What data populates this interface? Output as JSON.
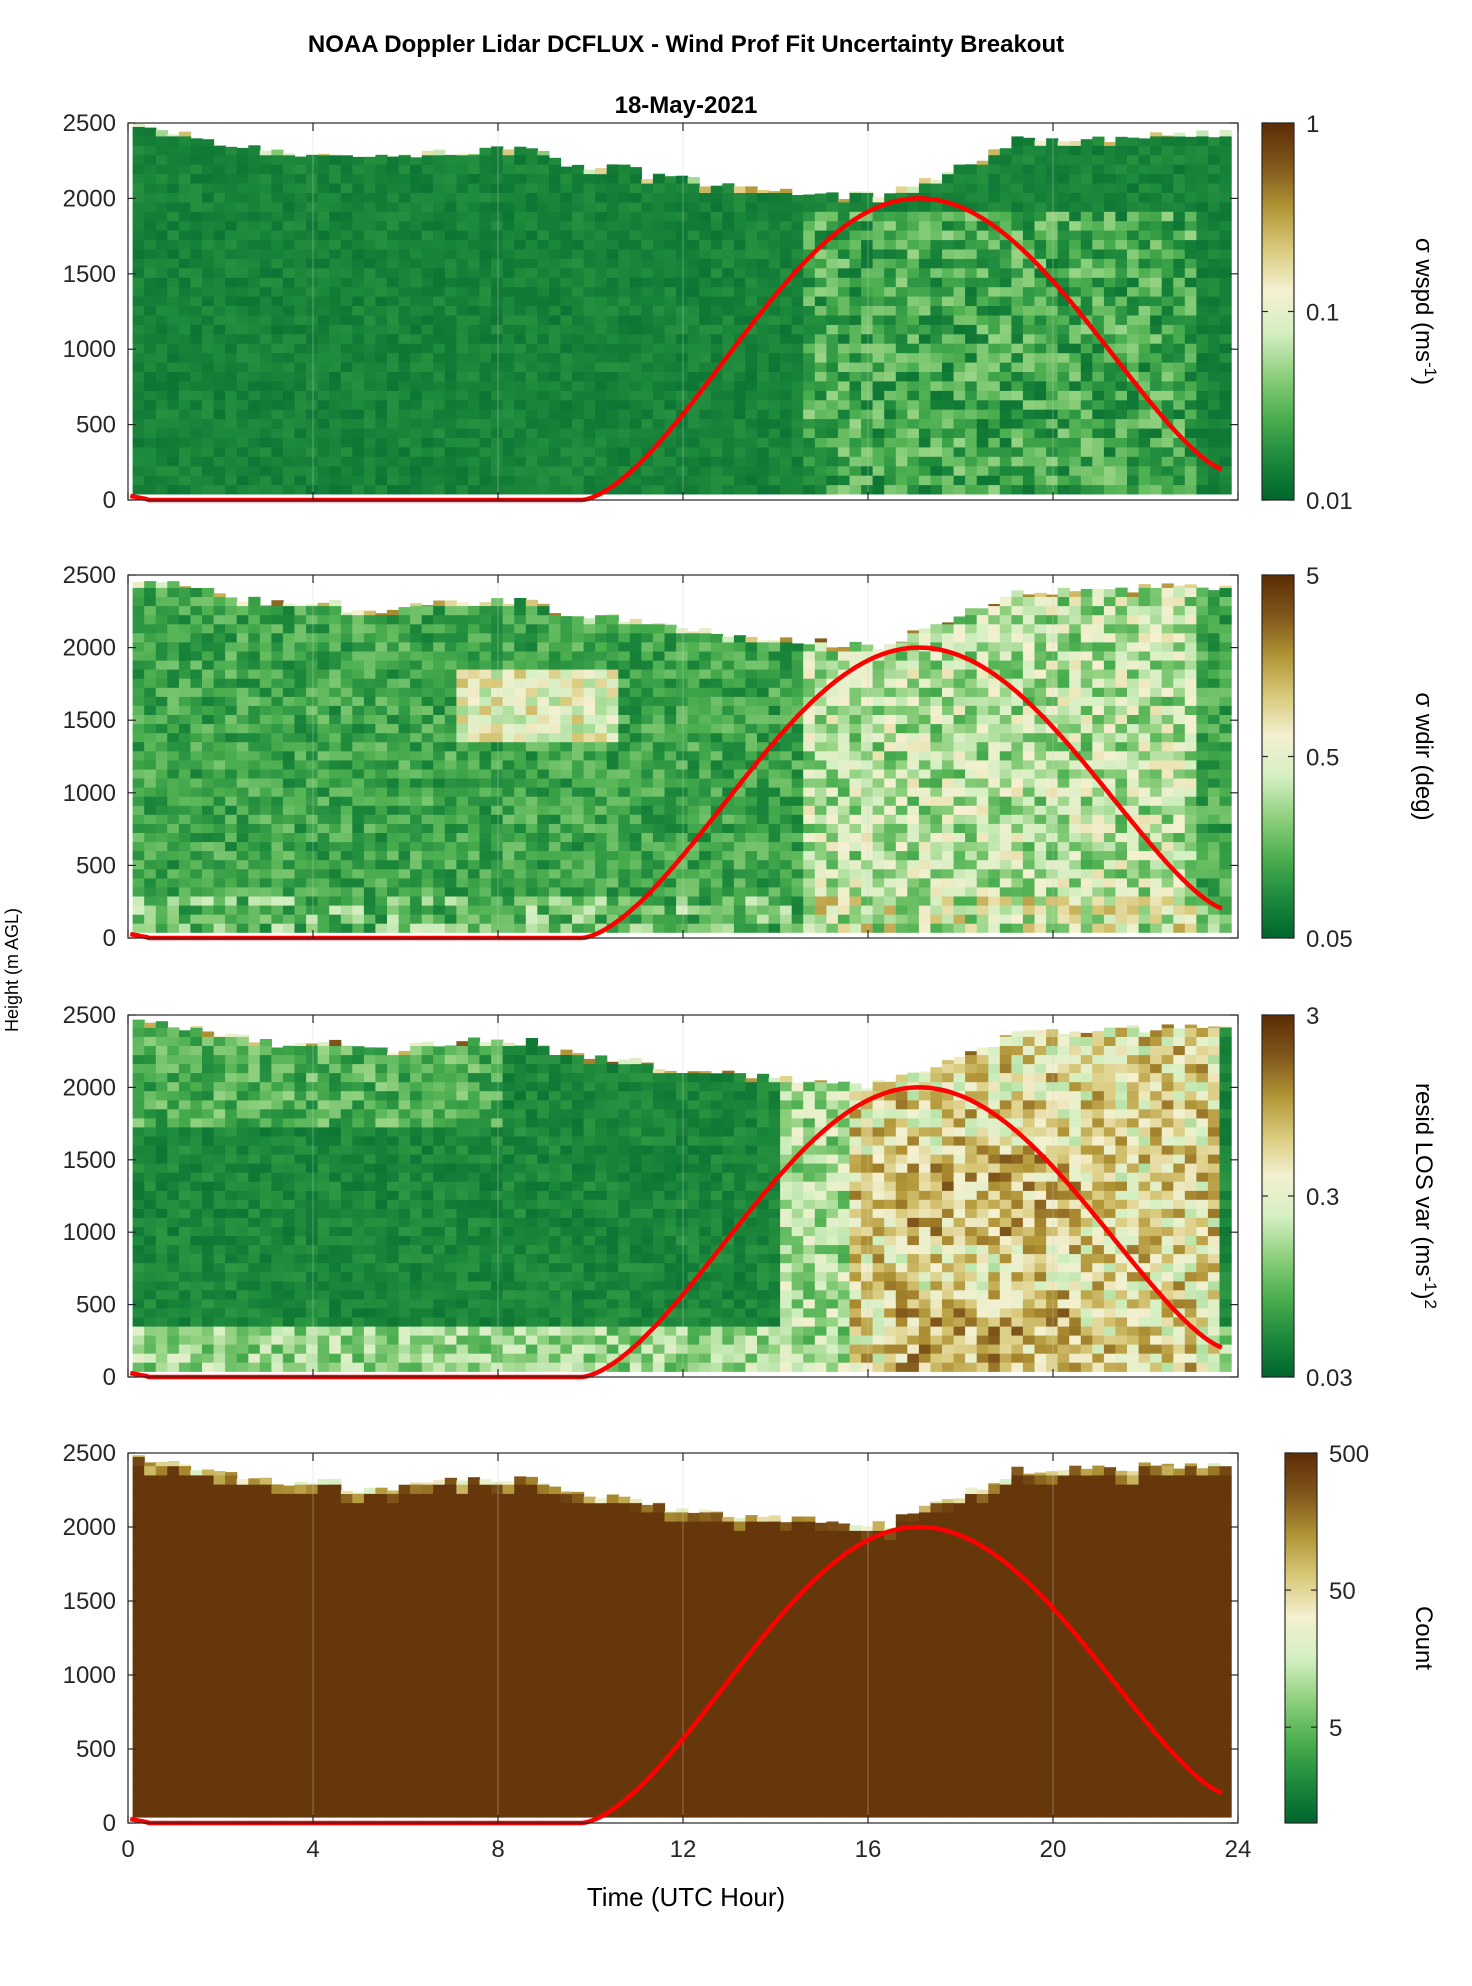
{
  "figure": {
    "title": "NOAA Doppler Lidar DCFLUX - Wind Prof Fit Uncertainty Breakout",
    "date": "18-May-2021",
    "ylabel": "Height (m AGL)",
    "xlabel": "Time (UTC Hour)"
  },
  "chart_data": [
    {
      "type": "heatmap",
      "panel": "sigma-wspd",
      "colorbar_label_parts": [
        "σ wspd (ms",
        "-1",
        ")"
      ],
      "colorbar_scale": "log",
      "colorbar_range": [
        0.01,
        1
      ],
      "colorbar_ticks": [
        "0.01",
        "0.1",
        "1"
      ],
      "xlim": [
        0,
        24
      ],
      "ylim": [
        0,
        2500
      ],
      "xticks": [
        "0",
        "4",
        "8",
        "12",
        "16",
        "20",
        "24"
      ],
      "yticks": [
        "0",
        "500",
        "1000",
        "1500",
        "2000",
        "2500"
      ],
      "overlay_line": {
        "color": "#ff0000"
      }
    },
    {
      "type": "heatmap",
      "panel": "sigma-wdir",
      "colorbar_label_parts": [
        "σ wdir (deg)"
      ],
      "colorbar_scale": "log",
      "colorbar_range": [
        0.05,
        5
      ],
      "colorbar_ticks": [
        "0.05",
        "0.5",
        "5"
      ],
      "xlim": [
        0,
        24
      ],
      "ylim": [
        0,
        2500
      ],
      "xticks": [
        "0",
        "4",
        "8",
        "12",
        "16",
        "20",
        "24"
      ],
      "yticks": [
        "0",
        "500",
        "1000",
        "1500",
        "2000",
        "2500"
      ],
      "overlay_line": {
        "color": "#ff0000"
      }
    },
    {
      "type": "heatmap",
      "panel": "resid-los-var",
      "colorbar_label_parts": [
        "resid LOS var (ms",
        "-1",
        ")",
        "2"
      ],
      "colorbar_scale": "log",
      "colorbar_range": [
        0.03,
        3
      ],
      "colorbar_ticks": [
        "0.03",
        "0.3",
        "3"
      ],
      "xlim": [
        0,
        24
      ],
      "ylim": [
        0,
        2500
      ],
      "xticks": [
        "0",
        "4",
        "8",
        "12",
        "16",
        "20",
        "24"
      ],
      "yticks": [
        "0",
        "500",
        "1000",
        "1500",
        "2000",
        "2500"
      ],
      "overlay_line": {
        "color": "#ff0000"
      }
    },
    {
      "type": "heatmap",
      "panel": "count",
      "colorbar_label_parts": [
        "Count"
      ],
      "colorbar_scale": "log",
      "colorbar_range": [
        1,
        500
      ],
      "colorbar_ticks": [
        "5",
        "50",
        "500"
      ],
      "xlim": [
        0,
        24
      ],
      "ylim": [
        0,
        2500
      ],
      "xticks": [
        "0",
        "4",
        "8",
        "12",
        "16",
        "20",
        "24"
      ],
      "yticks": [
        "0",
        "500",
        "1000",
        "1500",
        "2000",
        "2500"
      ],
      "overlay_line": {
        "color": "#ff0000"
      }
    }
  ],
  "colormap": {
    "stops": [
      "#00652e",
      "#1e8a3c",
      "#4caf50",
      "#8fd07e",
      "#d4efc2",
      "#f4f0d0",
      "#d8c97a",
      "#b09335",
      "#80561a",
      "#5c2c06"
    ]
  }
}
